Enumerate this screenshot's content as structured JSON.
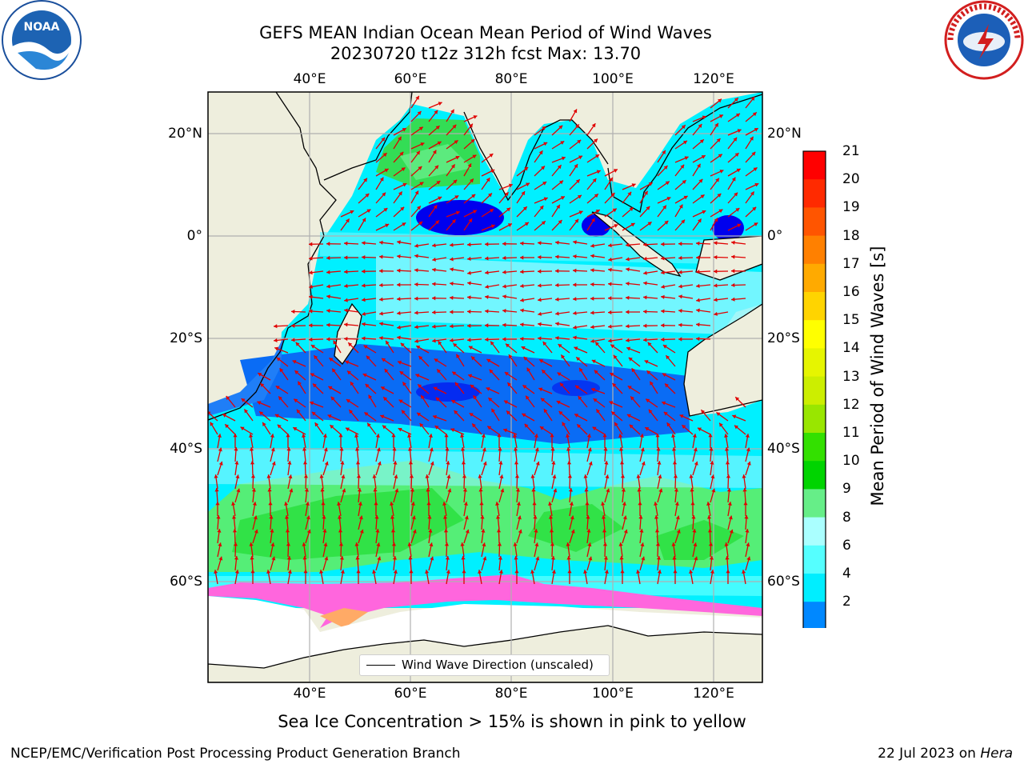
{
  "title_line1": "GEFS MEAN Indian Ocean Mean Period of Wind Waves",
  "title_line2": "20230720 t12z 312h fcst   Max: 13.70",
  "longitude_ticks": [
    "40°E",
    "60°E",
    "80°E",
    "100°E",
    "120°E"
  ],
  "latitude_ticks": [
    "20°N",
    "0°",
    "20°S",
    "40°S",
    "60°S"
  ],
  "colorbar": {
    "label": "Mean Period of Wind Waves [s]",
    "ticks": [
      "21",
      "20",
      "19",
      "18",
      "17",
      "16",
      "15",
      "14",
      "13",
      "12",
      "11",
      "10",
      "9",
      "8",
      "6",
      "4",
      "2"
    ],
    "colors": [
      "#ff0000",
      "#ff2a00",
      "#ff5500",
      "#ff8000",
      "#ffaa00",
      "#ffd400",
      "#ffff00",
      "#e6f500",
      "#ccee00",
      "#99e600",
      "#33e000",
      "#00d400",
      "#66ee88",
      "#aaffff",
      "#55ffff",
      "#00eeff",
      "#0088ff",
      "#0000ee"
    ]
  },
  "legend": {
    "label": "Wind Wave Direction (unscaled)"
  },
  "caption": "Sea Ice Concentration > 15% is shown in pink to yellow",
  "footer_left": "NCEP/EMC/Verification Post Processing Product Generation Branch",
  "footer_right_prefix": "22 Jul 2023 on ",
  "footer_right_host": "Hera",
  "logos": {
    "left": "NOAA",
    "right": "NATIONAL WEATHER SERVICE"
  }
}
